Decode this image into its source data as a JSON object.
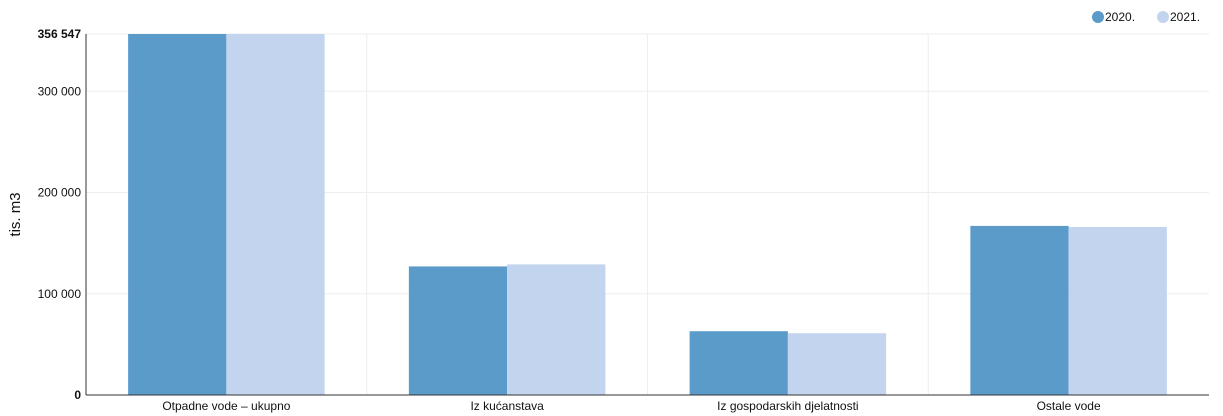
{
  "chart_data": {
    "type": "bar",
    "ylabel": "tis. m3",
    "xlabel": "",
    "categories": [
      "Otpadne vode – ukupno",
      "Iz kućanstava",
      "Iz gospodarskih djelatnosti",
      "Ostale vode"
    ],
    "series": [
      {
        "name": "2020.",
        "color": "#5b9bca",
        "values": [
          356547,
          127000,
          63000,
          167000
        ]
      },
      {
        "name": "2021.",
        "color": "#c3d4ee",
        "values": [
          356547,
          129000,
          61000,
          166000
        ]
      }
    ],
    "ylim": [
      0,
      356547
    ],
    "y_ticks": [
      {
        "value": 0,
        "label": "0",
        "bold": true
      },
      {
        "value": 100000,
        "label": "100 000",
        "bold": false
      },
      {
        "value": 200000,
        "label": "200 000",
        "bold": false
      },
      {
        "value": 300000,
        "label": "300 000",
        "bold": false
      },
      {
        "value": 356547,
        "label": "356 547",
        "bold": true
      }
    ],
    "grid": true,
    "legend_position": "top-right"
  }
}
